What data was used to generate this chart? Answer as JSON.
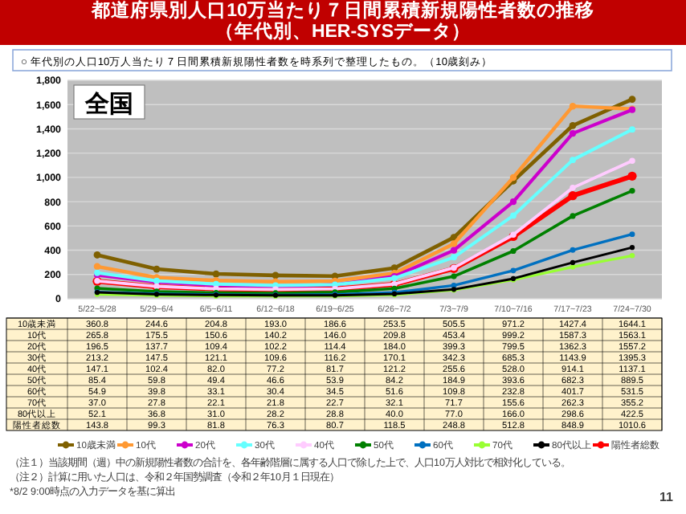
{
  "chart_data": {
    "type": "line",
    "title": "都道府県別人口10万当たり７日間累積新規陽性者数の推移（年代別、HER-SYSデータ）",
    "subtitle": "○ 年代別の人口10万人当たり７日間累積新規陽性者数を時系列で整理したもの。（10歳刻み）",
    "categories": [
      "5/22~5/28",
      "5/29~6/4",
      "6/5~6/11",
      "6/12~6/18",
      "6/19~6/25",
      "6/26~7/2",
      "7/3~7/9",
      "7/10~7/16",
      "7/17~7/23",
      "7/24~7/30"
    ],
    "series": [
      {
        "name": "10歳未満",
        "color": "#7f6000",
        "values": [
          360.8,
          244.6,
          204.8,
          193.0,
          186.6,
          253.5,
          505.5,
          971.2,
          1427.4,
          1644.1
        ],
        "value_labels": [
          "360.8",
          "244.6",
          "204.8",
          "193.0",
          "186.6",
          "253.5",
          "505.5",
          "971.2",
          "1427.4",
          "1644.1"
        ]
      },
      {
        "name": "10代",
        "color": "#ff9933",
        "values": [
          265.8,
          175.5,
          150.6,
          140.2,
          146.0,
          209.8,
          453.4,
          999.2,
          1587.3,
          1563.1
        ],
        "value_labels": [
          "265.8",
          "175.5",
          "150.6",
          "140.2",
          "146.0",
          "209.8",
          "453.4",
          "999.2",
          "1587.3",
          "1563.1"
        ]
      },
      {
        "name": "20代",
        "color": "#cc00cc",
        "values": [
          196.5,
          137.7,
          109.4,
          102.2,
          114.4,
          184.0,
          399.3,
          799.5,
          1362.3,
          1557.2
        ],
        "value_labels": [
          "196.5",
          "137.7",
          "109.4",
          "102.2",
          "114.4",
          "184.0",
          "399.3",
          "799.5",
          "1362.3",
          "1557.2"
        ]
      },
      {
        "name": "30代",
        "color": "#66ffff",
        "values": [
          213.2,
          147.5,
          121.1,
          109.6,
          116.2,
          170.1,
          342.3,
          685.3,
          1143.9,
          1395.3
        ],
        "value_labels": [
          "213.2",
          "147.5",
          "121.1",
          "109.6",
          "116.2",
          "170.1",
          "342.3",
          "685.3",
          "1143.9",
          "1395.3"
        ]
      },
      {
        "name": "40代",
        "color": "#ffccff",
        "values": [
          147.1,
          102.4,
          82.0,
          77.2,
          81.7,
          121.2,
          255.6,
          528.0,
          914.1,
          1137.1
        ],
        "value_labels": [
          "147.1",
          "102.4",
          "82.0",
          "77.2",
          "81.7",
          "121.2",
          "255.6",
          "528.0",
          "914.1",
          "1137.1"
        ]
      },
      {
        "name": "50代",
        "color": "#008000",
        "values": [
          85.4,
          59.8,
          49.4,
          46.6,
          53.9,
          84.2,
          184.9,
          393.6,
          682.3,
          889.5
        ],
        "value_labels": [
          "85.4",
          "59.8",
          "49.4",
          "46.6",
          "53.9",
          "84.2",
          "184.9",
          "393.6",
          "682.3",
          "889.5"
        ]
      },
      {
        "name": "60代",
        "color": "#0070c0",
        "values": [
          54.9,
          39.8,
          33.1,
          30.4,
          34.5,
          51.6,
          109.8,
          232.8,
          401.7,
          531.5
        ],
        "value_labels": [
          "54.9",
          "39.8",
          "33.1",
          "30.4",
          "34.5",
          "51.6",
          "109.8",
          "232.8",
          "401.7",
          "531.5"
        ]
      },
      {
        "name": "70代",
        "color": "#99ff33",
        "values": [
          37.0,
          27.8,
          22.1,
          21.8,
          22.7,
          32.1,
          71.7,
          155.6,
          262.3,
          355.2
        ],
        "value_labels": [
          "37.0",
          "27.8",
          "22.1",
          "21.8",
          "22.7",
          "32.1",
          "71.7",
          "155.6",
          "262.3",
          "355.2"
        ]
      },
      {
        "name": "80代以上",
        "color": "#000000",
        "values": [
          52.1,
          36.8,
          31.0,
          28.2,
          28.8,
          40.0,
          77.0,
          166.0,
          298.6,
          422.5
        ],
        "value_labels": [
          "52.1",
          "36.8",
          "31.0",
          "28.2",
          "28.8",
          "40.0",
          "77.0",
          "166.0",
          "298.6",
          "422.5"
        ]
      },
      {
        "name": "陽性者総数",
        "color": "#ff0000",
        "values": [
          143.8,
          99.3,
          81.8,
          76.3,
          80.7,
          118.5,
          248.8,
          512.8,
          848.9,
          1010.6
        ],
        "value_labels": [
          "143.8",
          "99.3",
          "81.8",
          "76.3",
          "80.7",
          "118.5",
          "248.8",
          "512.8",
          "848.9",
          "1010.6"
        ]
      }
    ],
    "ylim": [
      0,
      1800
    ],
    "yticks": [
      0,
      200,
      400,
      600,
      800,
      {
        "value": 1000,
        "label": "1,000"
      },
      {
        "value": 1200,
        "label": "1,200"
      },
      {
        "value": 1400,
        "label": "1,400"
      },
      {
        "value": 1600,
        "label": "1,600"
      },
      {
        "value": 1800,
        "label": "1,800"
      }
    ],
    "grid": "y",
    "legend": "bottom",
    "marker": "circle",
    "annotations": [
      "全国",
      "（注１）当該期間（週）中の新規陽性者数の合計を、各年齢階層に属する人口で除した上で、人口10万人対比で相対化している。",
      "（注２）計算に用いた人口は、令和２年国勢調査（令和２年10月１日現在）",
      "*8/2 9:00時点の入力データを基に算出",
      "11"
    ]
  }
}
